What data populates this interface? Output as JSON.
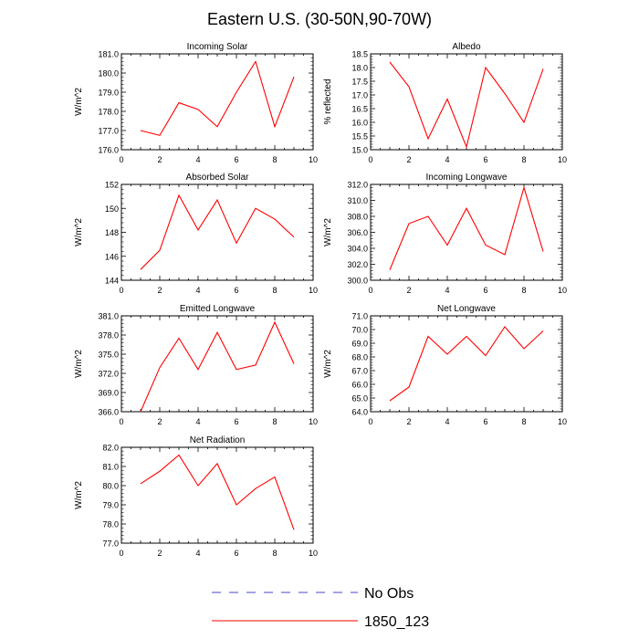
{
  "title": "Eastern U.S. (30-50N,90-70W)",
  "colors": {
    "series": "#ff0000",
    "obs": "#4444cc",
    "axis": "#000000"
  },
  "legend": [
    {
      "label": "No Obs",
      "style": "dashed"
    },
    {
      "label": "1850_123",
      "style": "solid"
    }
  ],
  "chart_data": [
    {
      "type": "line",
      "title": "Incoming Solar",
      "ylabel": "W/m^2",
      "x": [
        1,
        2,
        3,
        4,
        5,
        6,
        7,
        8,
        9
      ],
      "values": [
        177.0,
        176.75,
        178.45,
        178.1,
        177.2,
        179.0,
        180.6,
        177.2,
        179.8
      ],
      "xlim": [
        0,
        10
      ],
      "ylim": [
        176.0,
        181.0
      ],
      "xticks": [
        "0",
        "2",
        "4",
        "6",
        "8",
        "10"
      ],
      "yticks": [
        "176.0",
        "177.0",
        "178.0",
        "179.0",
        "180.0",
        "181.0"
      ]
    },
    {
      "type": "line",
      "title": "Albedo",
      "ylabel": "% reflected",
      "x": [
        1,
        2,
        3,
        4,
        5,
        6,
        7,
        8,
        9
      ],
      "values": [
        18.2,
        17.3,
        15.4,
        16.85,
        15.1,
        18.0,
        17.05,
        16.0,
        17.95
      ],
      "xlim": [
        0,
        10
      ],
      "ylim": [
        15.0,
        18.5
      ],
      "xticks": [
        "0",
        "2",
        "4",
        "6",
        "8",
        "10"
      ],
      "yticks": [
        "15.0",
        "15.5",
        "16.0",
        "16.5",
        "17.0",
        "17.5",
        "18.0",
        "18.5"
      ]
    },
    {
      "type": "line",
      "title": "Absorbed Solar",
      "ylabel": "W/m^2",
      "x": [
        1,
        2,
        3,
        4,
        5,
        6,
        7,
        8,
        9
      ],
      "values": [
        144.9,
        146.5,
        151.1,
        148.2,
        150.7,
        147.1,
        150.0,
        149.1,
        147.6
      ],
      "xlim": [
        0,
        10
      ],
      "ylim": [
        144,
        152
      ],
      "xticks": [
        "0",
        "2",
        "4",
        "6",
        "8",
        "10"
      ],
      "yticks": [
        "144",
        "146",
        "148",
        "150",
        "152"
      ]
    },
    {
      "type": "line",
      "title": "Incoming Longwave",
      "ylabel": "W/m^2",
      "x": [
        1,
        2,
        3,
        4,
        5,
        6,
        7,
        8,
        9
      ],
      "values": [
        301.3,
        307.1,
        308.0,
        304.4,
        309.0,
        304.4,
        303.2,
        311.6,
        303.6
      ],
      "xlim": [
        0,
        10
      ],
      "ylim": [
        300.0,
        312.0
      ],
      "xticks": [
        "0",
        "2",
        "4",
        "6",
        "8",
        "10"
      ],
      "yticks": [
        "300.0",
        "302.0",
        "304.0",
        "306.0",
        "308.0",
        "310.0",
        "312.0"
      ]
    },
    {
      "type": "line",
      "title": "Emitted Longwave",
      "ylabel": "W/m^2",
      "x": [
        1,
        2,
        3,
        4,
        5,
        6,
        7,
        8,
        9
      ],
      "values": [
        366.0,
        372.9,
        377.5,
        372.6,
        378.4,
        372.6,
        373.3,
        380.0,
        373.5
      ],
      "xlim": [
        0,
        10
      ],
      "ylim": [
        366.0,
        381.0
      ],
      "xticks": [
        "0",
        "2",
        "4",
        "6",
        "8",
        "10"
      ],
      "yticks": [
        "366.0",
        "369.0",
        "372.0",
        "375.0",
        "378.0",
        "381.0"
      ]
    },
    {
      "type": "line",
      "title": "Net Longwave",
      "ylabel": "W/m^2",
      "x": [
        1,
        2,
        3,
        4,
        5,
        6,
        7,
        8,
        9
      ],
      "values": [
        64.8,
        65.8,
        69.5,
        68.2,
        69.5,
        68.1,
        70.2,
        68.6,
        69.9
      ],
      "xlim": [
        0,
        10
      ],
      "ylim": [
        64.0,
        71.0
      ],
      "xticks": [
        "0",
        "2",
        "4",
        "6",
        "8",
        "10"
      ],
      "yticks": [
        "64.0",
        "65.0",
        "66.0",
        "67.0",
        "68.0",
        "69.0",
        "70.0",
        "71.0"
      ]
    },
    {
      "type": "line",
      "title": "Net Radiation",
      "ylabel": "W/m^2",
      "x": [
        1,
        2,
        3,
        4,
        5,
        6,
        7,
        8,
        9
      ],
      "values": [
        80.1,
        80.75,
        81.6,
        80.0,
        81.15,
        79.0,
        79.85,
        80.45,
        77.7
      ],
      "xlim": [
        0,
        10
      ],
      "ylim": [
        77.0,
        82.0
      ],
      "xticks": [
        "0",
        "2",
        "4",
        "6",
        "8",
        "10"
      ],
      "yticks": [
        "77.0",
        "78.0",
        "79.0",
        "80.0",
        "81.0",
        "82.0"
      ]
    }
  ]
}
